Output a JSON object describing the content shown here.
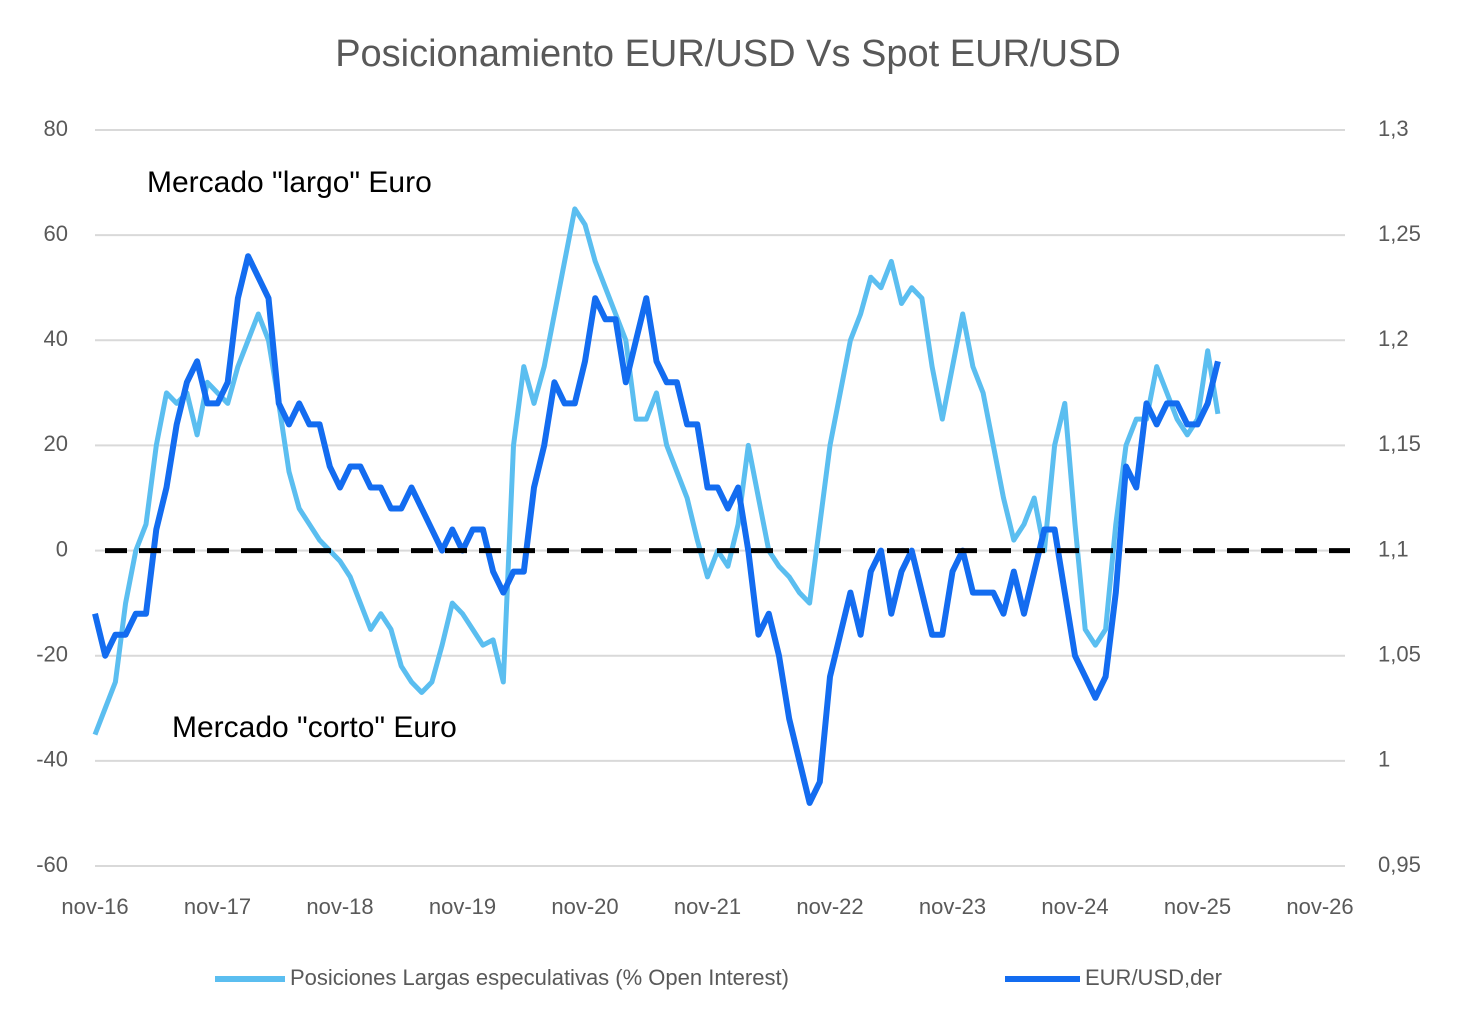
{
  "chart_data": {
    "type": "line",
    "title": "Posicionamiento EUR/USD Vs Spot EUR/USD",
    "annotations": [
      "Mercado \"largo\" Euro",
      "Mercado \"corto\" Euro"
    ],
    "x": [
      "2016-11",
      "2016-12",
      "2017-01",
      "2017-02",
      "2017-03",
      "2017-04",
      "2017-05",
      "2017-06",
      "2017-07",
      "2017-08",
      "2017-09",
      "2017-10",
      "2017-11",
      "2017-12",
      "2018-01",
      "2018-02",
      "2018-03",
      "2018-04",
      "2018-05",
      "2018-06",
      "2018-07",
      "2018-08",
      "2018-09",
      "2018-10",
      "2018-11",
      "2018-12",
      "2019-01",
      "2019-02",
      "2019-03",
      "2019-04",
      "2019-05",
      "2019-06",
      "2019-07",
      "2019-08",
      "2019-09",
      "2019-10",
      "2019-11",
      "2019-12",
      "2020-01",
      "2020-02",
      "2020-03",
      "2020-04",
      "2020-05",
      "2020-06",
      "2020-07",
      "2020-08",
      "2020-09",
      "2020-10",
      "2020-11",
      "2020-12",
      "2021-01",
      "2021-02",
      "2021-03",
      "2021-04",
      "2021-05",
      "2021-06",
      "2021-07",
      "2021-08",
      "2021-09",
      "2021-10",
      "2021-11",
      "2021-12",
      "2022-01",
      "2022-02",
      "2022-03",
      "2022-04",
      "2022-05",
      "2022-06",
      "2022-07",
      "2022-08",
      "2022-09",
      "2022-10",
      "2022-11",
      "2022-12",
      "2023-01",
      "2023-02",
      "2023-03",
      "2023-04",
      "2023-05",
      "2023-06",
      "2023-07",
      "2023-08",
      "2023-09",
      "2023-10",
      "2023-11",
      "2023-12",
      "2024-01",
      "2024-02",
      "2024-03",
      "2024-04",
      "2024-05",
      "2024-06",
      "2024-07",
      "2024-08",
      "2024-09",
      "2024-10",
      "2024-11",
      "2024-12",
      "2025-01",
      "2025-02",
      "2025-03",
      "2025-04",
      "2025-05",
      "2025-06",
      "2025-07",
      "2025-08",
      "2025-09",
      "2025-10",
      "2025-11",
      "2025-12",
      "2026-01"
    ],
    "series": [
      {
        "name": "Posiciones Largas especulativas (%  Open Interest)",
        "color": "#5bbef0",
        "values": [
          -35,
          -30,
          -25,
          -10,
          0,
          5,
          20,
          30,
          28,
          30,
          22,
          32,
          30,
          28,
          35,
          40,
          45,
          40,
          28,
          15,
          8,
          5,
          2,
          0,
          -2,
          -5,
          -10,
          -15,
          -12,
          -15,
          -22,
          -25,
          -27,
          -25,
          -18,
          -10,
          -12,
          -15,
          -18,
          -17,
          -25,
          20,
          35,
          28,
          35,
          45,
          55,
          65,
          62,
          55,
          50,
          45,
          40,
          25,
          25,
          30,
          20,
          15,
          10,
          2,
          -5,
          0,
          -3,
          5,
          20,
          10,
          0,
          -3,
          -5,
          -8,
          -10,
          5,
          20,
          30,
          40,
          45,
          52,
          50,
          55,
          47,
          50,
          48,
          35,
          25,
          35,
          45,
          35,
          30,
          20,
          10,
          2,
          5,
          10,
          0,
          20,
          28,
          5,
          -15,
          -18,
          -15,
          5,
          20,
          25,
          25,
          35,
          30,
          25,
          22,
          25,
          38,
          26
        ]
      },
      {
        "name": "EUR/USD,der",
        "color": "#136cf0",
        "axis": "y2",
        "values": [
          1.07,
          1.05,
          1.06,
          1.06,
          1.07,
          1.07,
          1.11,
          1.13,
          1.16,
          1.18,
          1.19,
          1.17,
          1.17,
          1.18,
          1.22,
          1.24,
          1.23,
          1.22,
          1.17,
          1.16,
          1.17,
          1.16,
          1.16,
          1.14,
          1.13,
          1.14,
          1.14,
          1.13,
          1.13,
          1.12,
          1.12,
          1.13,
          1.12,
          1.11,
          1.1,
          1.11,
          1.1,
          1.11,
          1.11,
          1.09,
          1.08,
          1.09,
          1.09,
          1.13,
          1.15,
          1.18,
          1.17,
          1.17,
          1.19,
          1.22,
          1.21,
          1.21,
          1.18,
          1.2,
          1.22,
          1.19,
          1.18,
          1.18,
          1.16,
          1.16,
          1.13,
          1.13,
          1.12,
          1.13,
          1.1,
          1.06,
          1.07,
          1.05,
          1.02,
          1.0,
          0.98,
          0.99,
          1.04,
          1.06,
          1.08,
          1.06,
          1.09,
          1.1,
          1.07,
          1.09,
          1.1,
          1.08,
          1.06,
          1.06,
          1.09,
          1.1,
          1.08,
          1.08,
          1.08,
          1.07,
          1.09,
          1.07,
          1.09,
          1.11,
          1.11,
          1.08,
          1.05,
          1.04,
          1.03,
          1.04,
          1.08,
          1.14,
          1.13,
          1.17,
          1.16,
          1.17,
          1.17,
          1.16,
          1.16,
          1.17,
          1.19
        ]
      }
    ],
    "reference_line": 0,
    "xlim": [
      "2016-11",
      "2026-11"
    ],
    "xticks": [
      {
        "value": "2016-11",
        "label": "nov-16"
      },
      {
        "value": "2017-11",
        "label": "nov-17"
      },
      {
        "value": "2018-11",
        "label": "nov-18"
      },
      {
        "value": "2019-11",
        "label": "nov-19"
      },
      {
        "value": "2020-11",
        "label": "nov-20"
      },
      {
        "value": "2021-11",
        "label": "nov-21"
      },
      {
        "value": "2022-11",
        "label": "nov-22"
      },
      {
        "value": "2023-11",
        "label": "nov-23"
      },
      {
        "value": "2024-11",
        "label": "nov-24"
      },
      {
        "value": "2025-11",
        "label": "nov-25"
      },
      {
        "value": "2026-11",
        "label": "nov-26"
      }
    ],
    "ylim": [
      -60,
      80
    ],
    "yticks": [
      -60,
      -40,
      -20,
      0,
      20,
      40,
      60,
      80
    ],
    "y2lim": [
      0.95,
      1.3
    ],
    "y2ticks": [
      {
        "value": 0.95,
        "label": "0,95"
      },
      {
        "value": 1.0,
        "label": "1"
      },
      {
        "value": 1.05,
        "label": "1,05"
      },
      {
        "value": 1.1,
        "label": "1,1"
      },
      {
        "value": 1.15,
        "label": "1,15"
      },
      {
        "value": 1.2,
        "label": "1,2"
      },
      {
        "value": 1.25,
        "label": "1,25"
      },
      {
        "value": 1.3,
        "label": "1,3"
      }
    ],
    "grid": true,
    "legend": "bottom"
  }
}
